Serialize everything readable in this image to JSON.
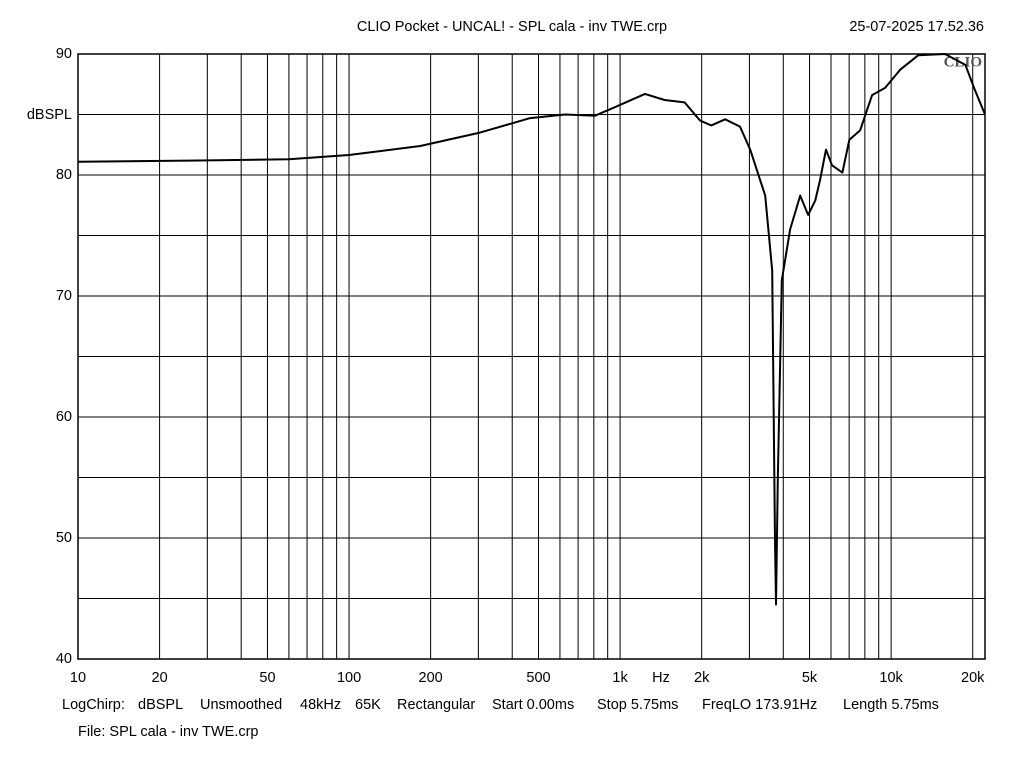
{
  "chart_data": {
    "type": "line",
    "title": "CLIO Pocket - UNCAL! - SPL cala - inv TWE.crp",
    "timestamp": "25-07-2025 17.52.36",
    "watermark": "CLIO",
    "y_label": "dBSPL",
    "x_label": "Hz",
    "x_scale": "log",
    "xlim": [
      10,
      22200
    ],
    "ylim": [
      40,
      90
    ],
    "xticks": [
      10,
      20,
      50,
      100,
      200,
      500,
      {
        "value": 1000,
        "label": "1k"
      },
      {
        "value": 2000,
        "label": "2k"
      },
      {
        "value": 5000,
        "label": "5k"
      },
      {
        "value": 10000,
        "label": "10k"
      },
      {
        "value": 20000,
        "label": "20k"
      }
    ],
    "xgrid_minor": [
      30,
      40,
      60,
      70,
      80,
      90,
      300,
      400,
      600,
      700,
      800,
      900,
      3000,
      4000,
      6000,
      7000,
      8000,
      9000
    ],
    "yticks": [
      40,
      50,
      60,
      70,
      80,
      90
    ],
    "ygrid_minor": [
      45,
      55,
      65,
      75,
      85
    ],
    "grid": true,
    "series": [
      {
        "color": "#000000",
        "x": [
          10,
          28,
          60,
          100,
          183,
          304,
          466,
          627,
          809,
          957,
          1236,
          1460,
          1730,
          1972,
          2170,
          2440,
          2770,
          3020,
          3430,
          3640,
          3730,
          3760,
          3820,
          3950,
          4240,
          4620,
          4940,
          5250,
          5470,
          5750,
          6050,
          6610,
          7010,
          7690,
          8510,
          9500,
          10800,
          12600,
          15800,
          18800,
          20400,
          22200
        ],
        "values": [
          81.1,
          81.2,
          81.3,
          81.65,
          82.4,
          83.5,
          84.7,
          85.0,
          84.9,
          85.6,
          86.7,
          86.2,
          86.0,
          84.5,
          84.1,
          84.6,
          84.0,
          82.1,
          78.3,
          72.1,
          49.8,
          44.5,
          54.8,
          71.3,
          75.5,
          78.3,
          76.7,
          77.9,
          79.6,
          82.1,
          80.8,
          80.2,
          82.9,
          83.7,
          86.6,
          87.2,
          88.7,
          89.9,
          90.0,
          89.1,
          87.0,
          85.0
        ]
      }
    ],
    "info": [
      "LogChirp:",
      "dBSPL",
      "Unsmoothed",
      "48kHz",
      "65K",
      "Rectangular",
      "Start 0.00ms",
      "Stop 5.75ms",
      "FreqLO 173.91Hz",
      "Length 5.75ms"
    ],
    "file": "File: SPL cala - inv TWE.crp"
  }
}
